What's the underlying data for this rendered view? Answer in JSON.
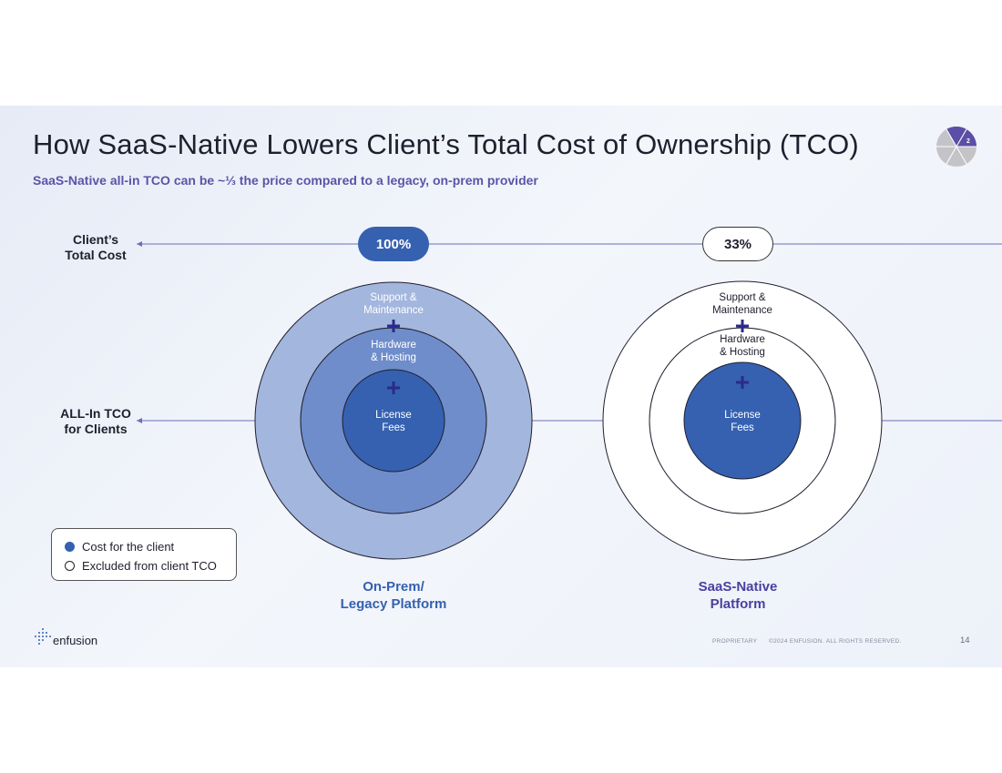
{
  "header": {
    "title": "How SaaS-Native Lowers Client’s Total Cost of Ownership (TCO)",
    "subtitle": "SaaS-Native all-in TCO can be ~⅓ the price compared to a legacy, on-prem provider",
    "badge_number": "2"
  },
  "rows": {
    "total_cost_line1": "Client’s",
    "total_cost_line2": "Total Cost",
    "all_in_line1": "ALL-In TCO",
    "all_in_line2": "for Clients"
  },
  "legacy": {
    "percent": "100%",
    "support_line1": "Support &",
    "support_line2": "Maintenance",
    "hardware_line1": "Hardware",
    "hardware_line2": "& Hosting",
    "license_line1": "License",
    "license_line2": "Fees",
    "platform_line1": "On-Prem/",
    "platform_line2": "Legacy Platform"
  },
  "saas": {
    "percent": "33%",
    "support_line1": "Support &",
    "support_line2": "Maintenance",
    "hardware_line1": "Hardware",
    "hardware_line2": "& Hosting",
    "license_line1": "License",
    "license_line2": "Fees",
    "platform_line1": "SaaS-Native",
    "platform_line2": "Platform"
  },
  "legend": {
    "cost_label": "Cost for the client",
    "excluded_label": "Excluded from client TCO"
  },
  "footer": {
    "logo_text": "enfusion",
    "proprietary": "PROPRIETARY",
    "copyright": "©2024 ENFUSION. ALL RIGHTS RESERVED.",
    "page_number": "14"
  },
  "colors": {
    "outer_ring": "#a3b6de",
    "middle_ring": "#6f8dca",
    "inner_ring": "#3561b0",
    "plus": "#2b2a8c",
    "accent_purple": "#5b54a8"
  },
  "icons": [
    "progress-pie-icon",
    "plus-icon",
    "arrow-left-icon",
    "enfusion-logo-icon"
  ]
}
